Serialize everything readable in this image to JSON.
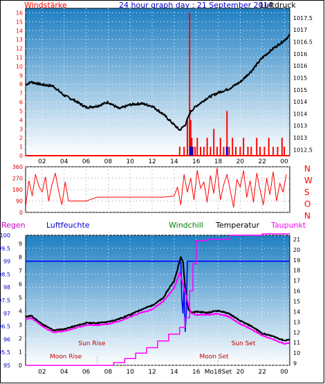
{
  "header": {
    "left_label": "Windstärke",
    "title": "24 hour graph day : 21 September 2014",
    "right_label": "Luftdruck"
  },
  "direction_labels": [
    "N",
    "W",
    "S",
    "O",
    "N"
  ],
  "lower_headers": {
    "regen": "Regen",
    "luftfeuchte": "Luftfeuchte",
    "windchill": "Windchill",
    "temperatur": "Temperatur",
    "taupunkt": "Taupunkt"
  },
  "event_labels": {
    "sun_rise": "Sun Rise",
    "sun_set": "Sun Set",
    "moon_rise": "Moon Rise",
    "moon_set": "Moon Set"
  },
  "colors": {
    "grad_top": "#1f7fc2",
    "grad_bottom": "#ffffff",
    "wind": "#ff0000",
    "pressure": "#000000",
    "temperature": "#000000",
    "dewpoint": "#ff00ff",
    "humidity": "#0000ff",
    "rain": "#ff00ff",
    "direction": "#ff0000",
    "event_text": "#c00000"
  },
  "chart_data": [
    {
      "type": "line",
      "name": "wind-and-pressure",
      "x_ticks": [
        "02",
        "04",
        "06",
        "08",
        "10",
        "12",
        "14",
        "16",
        "18",
        "20",
        "22",
        "00"
      ],
      "y_left_ticks": [
        "0",
        "1",
        "2",
        "3",
        "4",
        "5",
        "6",
        "7",
        "8",
        "9",
        "10",
        "11",
        "12",
        "13",
        "14",
        "15",
        "16"
      ],
      "y_right_ticks": [
        "1012.5",
        "1013",
        "1013",
        "1014",
        "1014",
        "1015",
        "1015",
        "1016",
        "1016",
        "1016.5",
        "1017",
        "1017.5"
      ],
      "ylim_left": [
        0,
        16.5
      ],
      "ylim_right": [
        1012.25,
        1017.75
      ],
      "x_range": [
        0.5,
        24.5
      ],
      "pressure": {
        "hours": [
          0.5,
          1,
          2,
          3,
          4,
          5,
          6,
          7,
          8,
          9,
          10,
          11,
          12,
          13,
          14,
          14.5,
          15,
          15.5,
          16,
          17,
          18,
          19,
          20,
          21,
          22,
          23,
          24,
          24.5
        ],
        "values": [
          1014.9,
          1015.0,
          1014.9,
          1014.85,
          1014.5,
          1014.3,
          1014.05,
          1014.1,
          1014.25,
          1014.0,
          1014.15,
          1014.2,
          1014.1,
          1013.8,
          1013.4,
          1013.2,
          1013.4,
          1013.9,
          1014.1,
          1014.4,
          1014.6,
          1014.75,
          1015.0,
          1015.4,
          1015.9,
          1016.25,
          1016.55,
          1016.75
        ]
      },
      "wind_bars": {
        "hours": [
          14.5,
          14.9,
          15.2,
          15.4,
          15.5,
          15.6,
          15.7,
          15.9,
          16.1,
          16.4,
          16.7,
          17.0,
          17.3,
          17.6,
          17.9,
          18.2,
          18.5,
          18.8,
          19.0,
          19.3,
          19.6,
          20.0,
          20.3,
          20.7,
          21.0,
          21.5,
          21.8,
          22.2,
          22.6,
          23.0,
          23.4,
          23.8,
          24.0
        ],
        "values": [
          1,
          1,
          4,
          16,
          4,
          2,
          1,
          1,
          2,
          1,
          1,
          2,
          1,
          3,
          1,
          2,
          1,
          5,
          1,
          2,
          1,
          1,
          2,
          1,
          1,
          2,
          1,
          1,
          2,
          1,
          1,
          2,
          1
        ]
      },
      "gust_bars": {
        "hours": [
          15.5,
          15.6,
          18.8
        ],
        "values": [
          1,
          1,
          1
        ]
      },
      "wind_baseline": 0
    },
    {
      "type": "scatter",
      "name": "wind-direction",
      "y_ticks": [
        "0",
        "90",
        "180",
        "270",
        "360"
      ],
      "ylim": [
        0,
        360
      ],
      "x_range": [
        0.5,
        24.5
      ],
      "hours": [
        0.5,
        0.8,
        1.1,
        1.4,
        1.7,
        2.0,
        2.3,
        2.6,
        2.9,
        3.2,
        3.5,
        3.8,
        4.1,
        4.4,
        5,
        6,
        7,
        8,
        9,
        10,
        11,
        12,
        13,
        14,
        14.3,
        14.6,
        14.9,
        15.2,
        15.5,
        15.8,
        16.1,
        16.4,
        16.7,
        17.0,
        17.3,
        17.6,
        17.9,
        18.2,
        18.5,
        18.8,
        19.1,
        19.4,
        19.7,
        20.0,
        20.3,
        20.6,
        20.9,
        21.2,
        21.5,
        21.8,
        22.1,
        22.4,
        22.7,
        23.0,
        23.3,
        23.6,
        23.9,
        24.2
      ],
      "values": [
        40,
        250,
        130,
        300,
        210,
        160,
        280,
        90,
        220,
        310,
        170,
        60,
        240,
        90,
        90,
        90,
        120,
        120,
        120,
        120,
        120,
        120,
        120,
        130,
        200,
        60,
        300,
        160,
        270,
        100,
        330,
        190,
        240,
        80,
        290,
        150,
        350,
        100,
        220,
        300,
        170,
        40,
        260,
        200,
        330,
        120,
        250,
        80,
        310,
        180,
        60,
        270,
        140,
        320,
        90,
        230,
        160,
        300
      ]
    },
    {
      "type": "line",
      "name": "temperature-humidity-rain",
      "x_ticks": [
        "02",
        "04",
        "06",
        "08",
        "10",
        "12",
        "14",
        "16",
        "Mo18Set",
        "20",
        "22",
        "00"
      ],
      "y_left_ticks": [
        "95",
        "95.5",
        "96",
        "96.5",
        "97",
        "97.5",
        "98",
        "98.5",
        "99",
        "99.5",
        "100"
      ],
      "y_right_ticks": [
        "9",
        "10",
        "11",
        "12",
        "13",
        "14",
        "15",
        "16",
        "17",
        "18",
        "19",
        "20",
        "21"
      ],
      "y_rain_ticks": [
        "0",
        "1",
        "2",
        "3",
        "4",
        "5",
        "6",
        "7",
        "8",
        "9"
      ],
      "ylim_left": [
        95,
        100
      ],
      "ylim_right": [
        8.8,
        21.4
      ],
      "x_range": [
        0.5,
        24.5
      ],
      "temperature": {
        "hours": [
          0.5,
          1,
          2,
          3,
          4,
          5,
          6,
          7,
          8,
          9,
          10,
          11,
          12,
          13,
          13.5,
          14,
          14.3,
          14.6,
          14.8,
          15.0,
          15.3,
          15.6,
          16,
          17,
          18,
          19,
          20,
          21,
          22,
          23,
          24,
          24.5
        ],
        "values": [
          13.5,
          13.6,
          12.8,
          12.2,
          12.3,
          12.6,
          12.9,
          12.9,
          13.0,
          13.3,
          13.7,
          14.2,
          14.6,
          15.3,
          16.2,
          17.0,
          18.1,
          19.3,
          18.9,
          16.3,
          14.2,
          13.9,
          14.0,
          13.9,
          14.1,
          13.8,
          13.1,
          12.6,
          11.9,
          11.6,
          11.2,
          11.3
        ]
      },
      "dewpoint": {
        "hours": [
          0.5,
          1,
          2,
          3,
          4,
          5,
          6,
          7,
          8,
          9,
          10,
          11,
          12,
          13,
          13.5,
          14,
          14.5,
          15,
          15.5,
          16,
          17,
          18,
          19,
          20,
          21,
          22,
          23,
          24,
          24.5
        ],
        "values": [
          13.2,
          13.4,
          12.6,
          12.0,
          12.1,
          12.4,
          12.7,
          12.7,
          12.8,
          13.1,
          13.5,
          13.9,
          14.2,
          15.0,
          15.6,
          16.3,
          17.8,
          15.9,
          13.9,
          13.7,
          13.7,
          13.8,
          13.5,
          12.8,
          12.3,
          11.7,
          11.3,
          10.9,
          11.0
        ]
      },
      "humidity": {
        "hours": [
          0.5,
          14.6,
          14.7,
          14.8,
          14.9,
          15.0,
          15.1,
          15.2,
          24.5
        ],
        "values": [
          99,
          99,
          97.5,
          97,
          98,
          96.3,
          97,
          99,
          99
        ]
      },
      "rain_cumulative": {
        "hours": [
          0.5,
          7.5,
          8.5,
          9.5,
          10.5,
          11.5,
          12.5,
          13.5,
          14.5,
          15.0,
          15.4,
          15.7,
          16.0,
          17.0,
          19.0,
          22.0,
          24.5
        ],
        "values": [
          0,
          0,
          0.2,
          0.5,
          0.9,
          1.3,
          1.8,
          2.3,
          2.8,
          3.5,
          5.5,
          7.5,
          9.2,
          9.3,
          9.6,
          9.7,
          9.7
        ]
      },
      "markers": {
        "sun_rise_hour": 7.5,
        "sun_set_hour": 19.2,
        "moon_rise_hour": 7.0,
        "moon_set_hour": 18.0
      }
    }
  ]
}
